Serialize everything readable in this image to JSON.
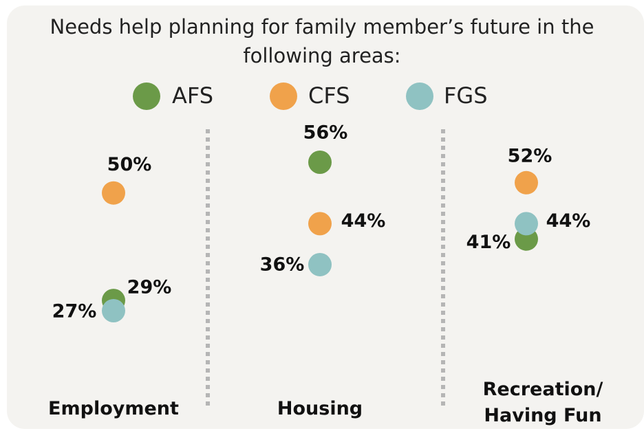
{
  "chart_data": {
    "type": "dot",
    "title": "Needs help planning for family member’s future in the following areas:",
    "categories": [
      "Employment",
      "Housing",
      "Recreation/\nHaving Fun"
    ],
    "series": [
      {
        "name": "AFS",
        "color": "#6b9a48",
        "values": [
          29,
          56,
          41
        ],
        "value_labels": [
          "29%",
          "56%",
          "41%"
        ]
      },
      {
        "name": "CFS",
        "color": "#f0a24b",
        "values": [
          50,
          44,
          52
        ],
        "value_labels": [
          "50%",
          "44%",
          "52%"
        ]
      },
      {
        "name": "FGS",
        "color": "#8fc2c2",
        "values": [
          27,
          36,
          44
        ],
        "value_labels": [
          "27%",
          "36%",
          "44%"
        ]
      }
    ]
  }
}
